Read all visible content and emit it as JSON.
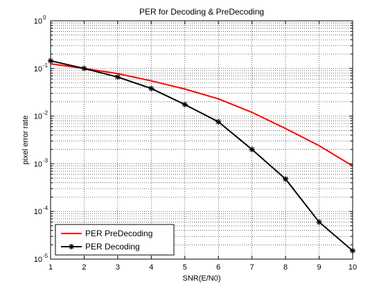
{
  "chart_data": {
    "type": "line",
    "title": "PER for Decoding & PreDecoding",
    "xlabel": "SNR(E/N0)",
    "ylabel": "pixel error rate",
    "yscale": "log",
    "xlim": [
      1,
      10
    ],
    "ylim": [
      1e-05,
      1
    ],
    "grid": true,
    "legend_position": "bottom-left",
    "x": [
      1,
      2,
      3,
      4,
      5,
      6,
      7,
      8,
      9,
      10
    ],
    "x_tick_labels": [
      "1",
      "2",
      "3",
      "4",
      "5",
      "6",
      "7",
      "8",
      "9",
      "10"
    ],
    "y_ticks": [
      1e-05,
      0.0001,
      0.001,
      0.01,
      0.1,
      1
    ],
    "y_tick_labels": [
      {
        "base": "10",
        "exp": "-5"
      },
      {
        "base": "10",
        "exp": "-4"
      },
      {
        "base": "10",
        "exp": "-3"
      },
      {
        "base": "10",
        "exp": "-2"
      },
      {
        "base": "10",
        "exp": "-1"
      },
      {
        "base": "10",
        "exp": "0"
      }
    ],
    "series": [
      {
        "name": "PER PreDecoding",
        "color": "#ff0000",
        "marker": "none",
        "values": [
          0.125,
          0.1,
          0.078,
          0.055,
          0.037,
          0.023,
          0.012,
          0.0055,
          0.0024,
          0.0009
        ]
      },
      {
        "name": "PER Decoding",
        "color": "#000000",
        "marker": "star",
        "values": [
          0.145,
          0.1,
          0.066,
          0.038,
          0.0175,
          0.0076,
          0.002,
          0.00048,
          6e-05,
          1.5e-05
        ]
      }
    ]
  }
}
